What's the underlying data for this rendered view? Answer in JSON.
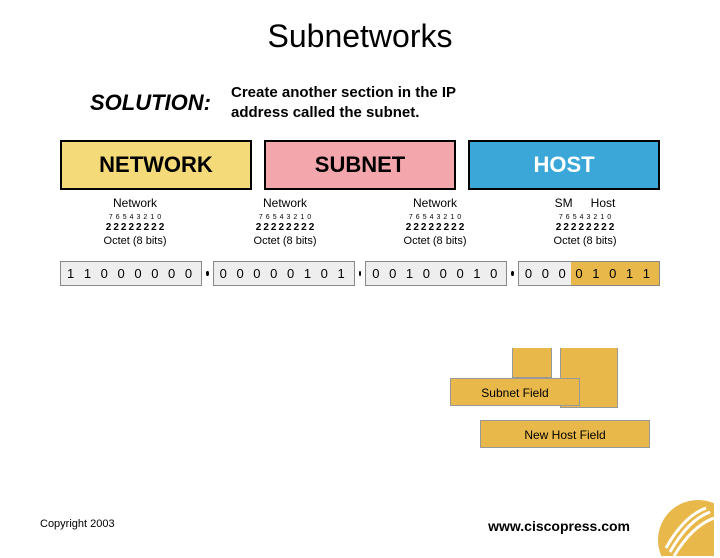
{
  "title": "Subnetworks",
  "solution": {
    "label": "SOLUTION:",
    "line1": "Create another section in the IP",
    "line2": "address called the subnet."
  },
  "blocks": [
    {
      "label": "NETWORK",
      "bg": "#f5da7a",
      "fg": "#000000"
    },
    {
      "label": "SUBNET",
      "bg": "#f3a6ab",
      "fg": "#000000"
    },
    {
      "label": "HOST",
      "bg": "#3aa7d8",
      "fg": "#ffffff"
    }
  ],
  "column_labels": [
    "Network",
    "Network",
    "Network"
  ],
  "sm_label": "SM",
  "host_label": "Host",
  "bit_indices": [
    "7",
    "6",
    "5",
    "4",
    "3",
    "2",
    "1",
    "0"
  ],
  "bit_weights": [
    "2",
    "2",
    "2",
    "2",
    "2",
    "2",
    "2",
    "2"
  ],
  "octet_caption": "Octet (8 bits)",
  "binary": {
    "o1": "1 1 0 0 0 0 0 0",
    "o2": "0 0 0 0 0 1 0 1",
    "o3": "0 0 1 0 0 0 1 0",
    "o4": "0 0 0 0 1 0 1 1"
  },
  "subnet_split_bits": 3,
  "fields": {
    "subnet": "Subnet Field",
    "host": "New Host Field"
  },
  "colors": {
    "highlight": "#e8b84a",
    "box_bg": "#eeeeee",
    "logo": "#e8b84a"
  },
  "footer": {
    "copyright": "Copyright 2003",
    "url": "www.ciscopress.com"
  }
}
